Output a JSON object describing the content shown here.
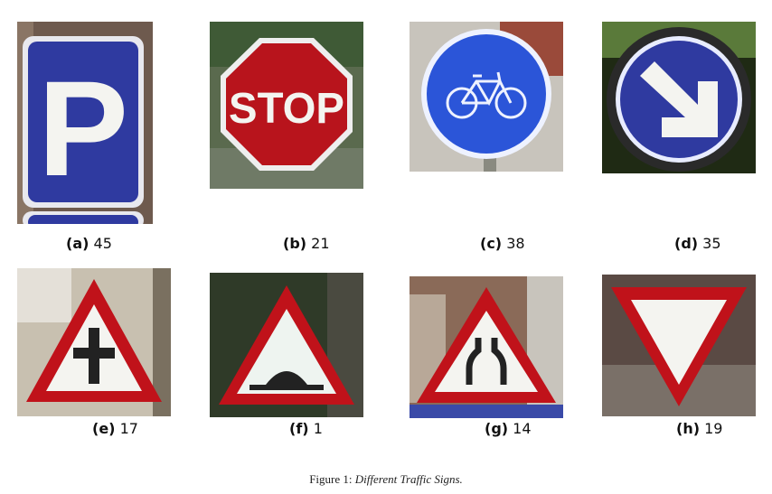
{
  "panels": [
    {
      "label": "(a)",
      "number": "45",
      "sign_text": "P",
      "icon": "parking-sign"
    },
    {
      "label": "(b)",
      "number": "21",
      "sign_text": "STOP",
      "icon": "stop-sign"
    },
    {
      "label": "(c)",
      "number": "38",
      "icon": "bicycle-sign"
    },
    {
      "label": "(d)",
      "number": "35",
      "icon": "keep-right-arrow-sign"
    },
    {
      "label": "(e)",
      "number": "17",
      "icon": "crossroads-warning-sign"
    },
    {
      "label": "(f)",
      "number": "1",
      "icon": "speed-bump-warning-sign"
    },
    {
      "label": "(g)",
      "number": "14",
      "icon": "road-narrows-warning-sign"
    },
    {
      "label": "(h)",
      "number": "19",
      "icon": "yield-sign"
    }
  ],
  "caption": {
    "prefix": "Figure 1:",
    "text": "Different Traffic Signs."
  },
  "colors": {
    "sign_blue": "#2f3aa0",
    "sign_red": "#c0121a",
    "sign_white": "#f4f4f0"
  }
}
